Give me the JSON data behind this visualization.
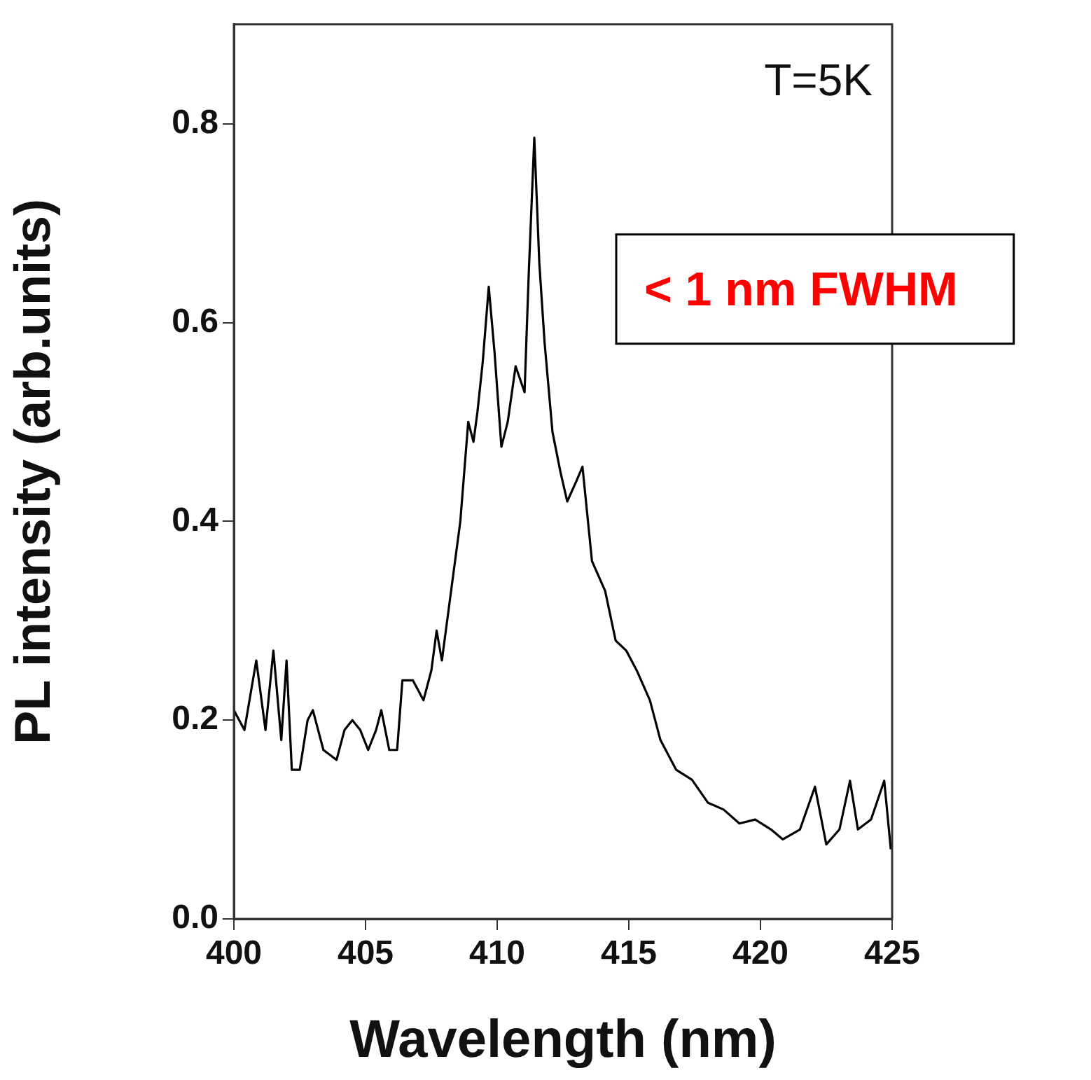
{
  "chart_data": {
    "type": "line",
    "xlabel": "Wavelength (nm)",
    "ylabel": "PL intensity (arb.units)",
    "annotations": [
      "T=5K",
      "< 1 nm FWHM"
    ],
    "xlim": [
      400,
      425
    ],
    "xticks": [
      400,
      405,
      410,
      415,
      420,
      425
    ],
    "ylim": [
      0,
      0.9
    ],
    "yticks": [
      {
        "value": 0,
        "label": "0.0"
      },
      {
        "value": 0.2,
        "label": "0.2"
      },
      {
        "value": 0.4,
        "label": "0.4"
      },
      {
        "value": 0.6,
        "label": "0.6"
      },
      {
        "value": 0.8,
        "label": "0.8"
      }
    ],
    "grid": false,
    "legend": false,
    "marker": "none",
    "line_style": "solid",
    "series": [
      {
        "color": "#000000",
        "x": [
          400.0,
          400.4,
          400.85,
          401.2,
          401.5,
          401.8,
          402.0,
          402.2,
          402.5,
          402.8,
          403.0,
          403.4,
          403.9,
          404.2,
          404.5,
          404.8,
          405.1,
          405.4,
          405.6,
          405.9,
          406.2,
          406.4,
          406.8,
          407.2,
          407.5,
          407.7,
          407.9,
          408.2,
          408.6,
          408.9,
          409.1,
          409.25,
          409.45,
          409.68,
          409.9,
          410.16,
          410.4,
          410.7,
          411.04,
          411.2,
          411.41,
          411.6,
          411.8,
          412.1,
          412.4,
          412.66,
          413.0,
          413.24,
          413.6,
          414.1,
          414.5,
          414.9,
          415.3,
          415.8,
          416.2,
          416.8,
          417.4,
          418.0,
          418.6,
          419.2,
          419.8,
          420.4,
          420.85,
          421.5,
          422.07,
          422.5,
          423.0,
          423.4,
          423.7,
          424.2,
          424.7,
          424.95
        ],
        "values": [
          0.21,
          0.19,
          0.26,
          0.19,
          0.27,
          0.18,
          0.26,
          0.15,
          0.15,
          0.2,
          0.21,
          0.17,
          0.16,
          0.19,
          0.2,
          0.19,
          0.17,
          0.19,
          0.21,
          0.17,
          0.17,
          0.24,
          0.24,
          0.22,
          0.25,
          0.29,
          0.26,
          0.32,
          0.4,
          0.5,
          0.48,
          0.51,
          0.56,
          0.636,
          0.57,
          0.475,
          0.5,
          0.556,
          0.53,
          0.65,
          0.786,
          0.66,
          0.58,
          0.49,
          0.45,
          0.42,
          0.44,
          0.455,
          0.36,
          0.33,
          0.28,
          0.27,
          0.25,
          0.22,
          0.18,
          0.15,
          0.14,
          0.117,
          0.11,
          0.096,
          0.1,
          0.09,
          0.08,
          0.09,
          0.133,
          0.075,
          0.09,
          0.139,
          0.09,
          0.1,
          0.139,
          0.07
        ]
      }
    ]
  }
}
